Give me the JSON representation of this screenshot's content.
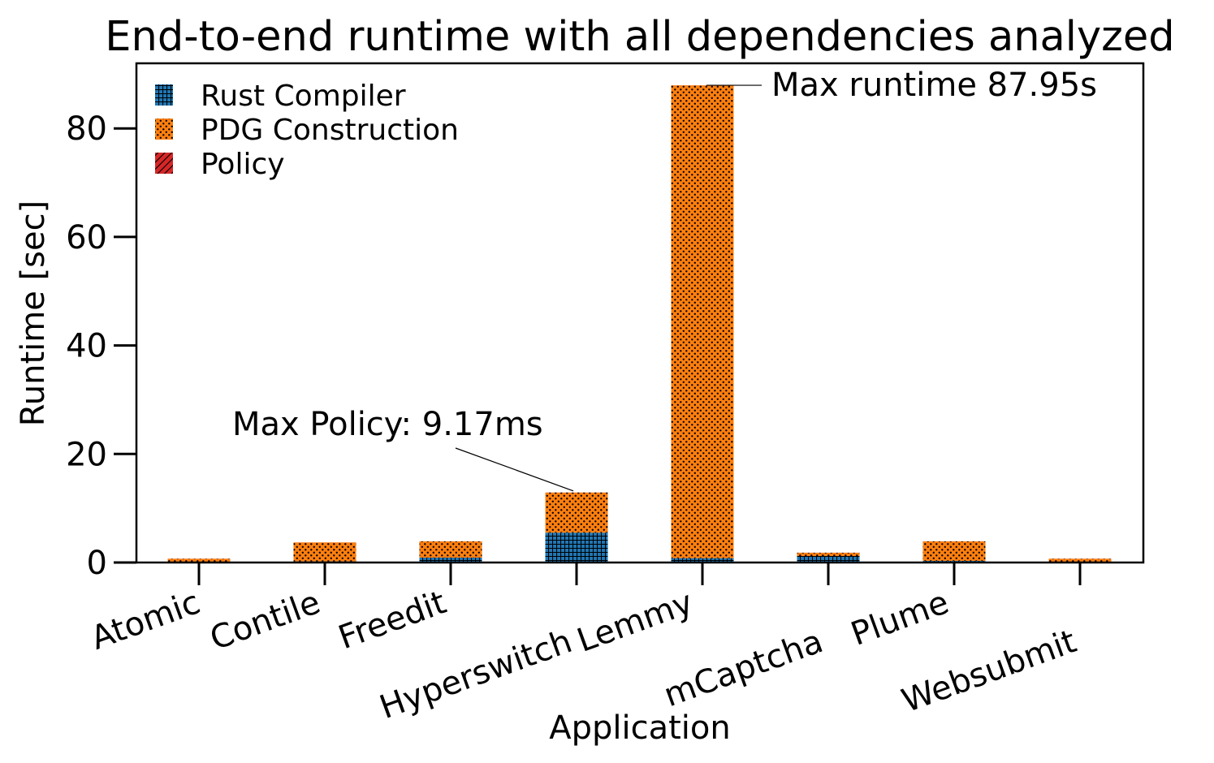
{
  "chart_data": {
    "type": "bar",
    "stacked": true,
    "title": "End-to-end runtime with all dependencies analyzed",
    "xlabel": "Application",
    "ylabel": "Runtime [sec]",
    "categories": [
      "Atomic",
      "Contile",
      "Freedit",
      "Hyperswitch",
      "Lemmy",
      "mCaptcha",
      "Plume",
      "Websubmit"
    ],
    "ylim": [
      0,
      92
    ],
    "yticks": [
      0,
      20,
      40,
      60,
      80
    ],
    "grid": false,
    "legend_position": "top-left",
    "series": [
      {
        "name": "Rust Compiler",
        "color": "#1f77b4",
        "hatch": "grid",
        "values": [
          0.1,
          0.2,
          0.9,
          5.5,
          0.8,
          1.2,
          0.3,
          0.1
        ]
      },
      {
        "name": "PDG Construction",
        "color": "#ff7f0e",
        "hatch": "dots",
        "values": [
          0.6,
          3.5,
          3.0,
          7.4,
          87.14,
          0.6,
          3.6,
          0.6
        ]
      },
      {
        "name": "Policy",
        "color": "#d62728",
        "hatch": "diagonal",
        "values": [
          0.009,
          0.009,
          0.009,
          0.009,
          0.009,
          0.009,
          0.009,
          0.009
        ]
      }
    ],
    "annotations": [
      {
        "text": "Max runtime 87.95s",
        "category": "Lemmy",
        "y": 87.95
      },
      {
        "text": "Max Policy: 9.17ms",
        "category": "Hyperswitch",
        "y": 12.9
      }
    ]
  }
}
